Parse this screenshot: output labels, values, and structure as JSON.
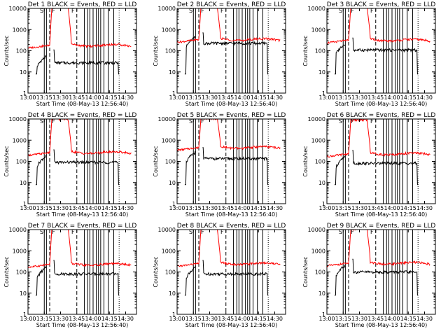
{
  "figure": {
    "background": "#ffffff",
    "colors": {
      "events": "#000000",
      "lld": "#ff0000"
    }
  },
  "chart_data": [
    {
      "type": "line",
      "title": "Det 1  BLACK = Events, RED = LLD",
      "xlabel": "Start Time (08-May-13 12:56:40)",
      "ylabel": "Counts/sec",
      "yscale": "log",
      "ylim": [
        1,
        10000
      ],
      "xlim": [
        "13:00",
        "14:40"
      ],
      "x_ticks": [
        "13:00",
        "13:15",
        "13:30",
        "13:45",
        "14:00",
        "14:15",
        "14:30"
      ],
      "y_ticks": [
        "1",
        "10",
        "100",
        "1000",
        "10000"
      ],
      "annotations": [
        "S",
        "F",
        "F"
      ],
      "series": [
        {
          "name": "BLACK = Events",
          "color": "#000000",
          "baseline": 30,
          "peak": 110,
          "gap_from": "13:17",
          "gap_to": "13:23",
          "end": "14:24"
        },
        {
          "name": "RED = LLD",
          "color": "#ff0000",
          "baseline": 160,
          "peak": 12000,
          "peak_from": "13:22",
          "peak_to": "13:37",
          "end": "14:35"
        }
      ],
      "solid_markers": [
        "13:15",
        "13:17",
        "13:52",
        "13:55",
        "13:57",
        "14:00",
        "14:03",
        "14:05",
        "14:07",
        "14:10",
        "14:14",
        "14:19"
      ],
      "dashed_markers": [
        "13:20",
        "13:45"
      ],
      "dotted_markers": [
        "14:24"
      ]
    },
    {
      "type": "line",
      "title": "Det 2  BLACK = Events, RED = LLD",
      "xlabel": "Start Time (08-May-13 12:56:40)",
      "ylabel": "Counts/sec",
      "yscale": "log",
      "ylim": [
        1,
        10000
      ],
      "xlim": [
        "13:00",
        "14:40"
      ],
      "x_ticks": [
        "13:00",
        "13:15",
        "13:30",
        "13:45",
        "14:00",
        "14:15",
        "14:30"
      ],
      "y_ticks": [
        "1",
        "10",
        "100",
        "1000",
        "10000"
      ],
      "annotations": [
        "S",
        "F",
        "F"
      ],
      "series": [
        {
          "name": "BLACK = Events",
          "color": "#000000",
          "baseline": 250,
          "peak": 700,
          "gap_from": "13:17",
          "gap_to": "13:23",
          "end": "14:24"
        },
        {
          "name": "RED = LLD",
          "color": "#ff0000",
          "baseline": 300,
          "peak": 12000,
          "peak_from": "13:22",
          "peak_to": "13:37",
          "end": "14:35"
        }
      ],
      "solid_markers": [
        "13:15",
        "13:17",
        "13:52",
        "13:55",
        "13:57",
        "14:00",
        "14:03",
        "14:05",
        "14:07",
        "14:10",
        "14:14",
        "14:19"
      ],
      "dashed_markers": [
        "13:20",
        "13:45"
      ],
      "dotted_markers": [
        "14:24"
      ]
    },
    {
      "type": "line",
      "title": "Det 3  BLACK = Events, RED = LLD",
      "xlabel": "Start Time (08-May-13 12:56:40)",
      "ylabel": "Counts/sec",
      "yscale": "log",
      "ylim": [
        1,
        10000
      ],
      "xlim": [
        "13:00",
        "14:40"
      ],
      "x_ticks": [
        "13:00",
        "13:15",
        "13:30",
        "13:45",
        "14:00",
        "14:15",
        "14:30"
      ],
      "y_ticks": [
        "1",
        "10",
        "100",
        "1000",
        "10000"
      ],
      "annotations": [
        "S",
        "F",
        "F"
      ],
      "series": [
        {
          "name": "BLACK = Events",
          "color": "#000000",
          "baseline": 120,
          "peak": 400,
          "gap_from": "13:17",
          "gap_to": "13:23",
          "end": "14:24"
        },
        {
          "name": "RED = LLD",
          "color": "#ff0000",
          "baseline": 280,
          "peak": 12000,
          "peak_from": "13:22",
          "peak_to": "13:37",
          "end": "14:35"
        }
      ],
      "solid_markers": [
        "13:15",
        "13:17",
        "13:52",
        "13:55",
        "13:57",
        "14:00",
        "14:03",
        "14:05",
        "14:07",
        "14:10",
        "14:14",
        "14:19"
      ],
      "dashed_markers": [
        "13:20",
        "13:45"
      ],
      "dotted_markers": [
        "14:24"
      ]
    },
    {
      "type": "line",
      "title": "Det 4  BLACK = Events, RED = LLD",
      "xlabel": "Start Time (08-May-13 12:56:40)",
      "ylabel": "Counts/sec",
      "yscale": "log",
      "ylim": [
        1,
        10000
      ],
      "xlim": [
        "13:00",
        "14:40"
      ],
      "x_ticks": [
        "13:00",
        "13:15",
        "13:30",
        "13:45",
        "14:00",
        "14:15",
        "14:30"
      ],
      "y_ticks": [
        "1",
        "10",
        "100",
        "1000",
        "10000"
      ],
      "annotations": [
        "S",
        "F",
        "F"
      ],
      "series": [
        {
          "name": "BLACK = Events",
          "color": "#000000",
          "baseline": 100,
          "peak": 350,
          "gap_from": "13:17",
          "gap_to": "13:23",
          "end": "14:24"
        },
        {
          "name": "RED = LLD",
          "color": "#ff0000",
          "baseline": 230,
          "peak": 10000,
          "peak_from": "13:22",
          "peak_to": "13:37",
          "end": "14:35"
        }
      ],
      "solid_markers": [
        "13:15",
        "13:17",
        "13:52",
        "13:55",
        "13:57",
        "14:00",
        "14:03",
        "14:05",
        "14:07",
        "14:10",
        "14:14",
        "14:19"
      ],
      "dashed_markers": [
        "13:20",
        "13:45"
      ],
      "dotted_markers": [
        "14:24"
      ]
    },
    {
      "type": "line",
      "title": "Det 5  BLACK = Events, RED = LLD",
      "xlabel": "Start Time (08-May-13 12:56:40)",
      "ylabel": "Counts/sec",
      "yscale": "log",
      "ylim": [
        1,
        10000
      ],
      "xlim": [
        "13:00",
        "14:40"
      ],
      "x_ticks": [
        "13:00",
        "13:15",
        "13:30",
        "13:45",
        "14:00",
        "14:15",
        "14:30"
      ],
      "y_ticks": [
        "1",
        "10",
        "100",
        "1000",
        "10000"
      ],
      "annotations": [
        "S",
        "F",
        "F"
      ],
      "series": [
        {
          "name": "BLACK = Events",
          "color": "#000000",
          "baseline": 150,
          "peak": 450,
          "gap_from": "13:17",
          "gap_to": "13:23",
          "end": "14:24"
        },
        {
          "name": "RED = LLD",
          "color": "#ff0000",
          "baseline": 400,
          "peak": 11000,
          "peak_from": "13:22",
          "peak_to": "13:37",
          "end": "14:35"
        }
      ],
      "solid_markers": [
        "13:15",
        "13:17",
        "13:52",
        "13:55",
        "13:57",
        "14:00",
        "14:03",
        "14:05",
        "14:07",
        "14:10",
        "14:14",
        "14:19"
      ],
      "dashed_markers": [
        "13:20",
        "13:45"
      ],
      "dotted_markers": [
        "14:24"
      ]
    },
    {
      "type": "line",
      "title": "Det 6  BLACK = Events, RED = LLD",
      "xlabel": "Start Time (08-May-13 12:56:40)",
      "ylabel": "Counts/sec",
      "yscale": "log",
      "ylim": [
        1,
        10000
      ],
      "xlim": [
        "13:00",
        "14:40"
      ],
      "x_ticks": [
        "13:00",
        "13:15",
        "13:30",
        "13:45",
        "14:00",
        "14:15",
        "14:30"
      ],
      "y_ticks": [
        "1",
        "10",
        "100",
        "1000",
        "10000"
      ],
      "annotations": [
        "S",
        "F",
        "F"
      ],
      "series": [
        {
          "name": "BLACK = Events",
          "color": "#000000",
          "baseline": 90,
          "peak": 330,
          "gap_from": "13:17",
          "gap_to": "13:23",
          "end": "14:24"
        },
        {
          "name": "RED = LLD",
          "color": "#ff0000",
          "baseline": 200,
          "peak": 9000,
          "peak_from": "13:22",
          "peak_to": "13:37",
          "end": "14:35"
        }
      ],
      "solid_markers": [
        "13:15",
        "13:17",
        "13:52",
        "13:55",
        "13:57",
        "14:00",
        "14:03",
        "14:05",
        "14:07",
        "14:10",
        "14:14",
        "14:19"
      ],
      "dashed_markers": [
        "13:20",
        "13:45"
      ],
      "dotted_markers": [
        "14:24"
      ]
    },
    {
      "type": "line",
      "title": "Det 7  BLACK = Events, RED = LLD",
      "xlabel": "Start Time (08-May-13 12:56:40)",
      "ylabel": "Counts/sec",
      "yscale": "log",
      "ylim": [
        1,
        10000
      ],
      "xlim": [
        "13:00",
        "14:40"
      ],
      "x_ticks": [
        "13:00",
        "13:15",
        "13:30",
        "13:45",
        "14:00",
        "14:15",
        "14:30"
      ],
      "y_ticks": [
        "1",
        "10",
        "100",
        "1000",
        "10000"
      ],
      "annotations": [
        "S",
        "F",
        "F"
      ],
      "series": [
        {
          "name": "BLACK = Events",
          "color": "#000000",
          "baseline": 90,
          "peak": 350,
          "gap_from": "13:17",
          "gap_to": "13:23",
          "end": "14:24"
        },
        {
          "name": "RED = LLD",
          "color": "#ff0000",
          "baseline": 200,
          "peak": 12000,
          "peak_from": "13:22",
          "peak_to": "13:37",
          "end": "14:35"
        }
      ],
      "solid_markers": [
        "13:15",
        "13:17",
        "13:52",
        "13:55",
        "13:57",
        "14:00",
        "14:03",
        "14:05",
        "14:07",
        "14:10",
        "14:14",
        "14:19"
      ],
      "dashed_markers": [
        "13:20",
        "13:45"
      ],
      "dotted_markers": [
        "14:24"
      ]
    },
    {
      "type": "line",
      "title": "Det 8  BLACK = Events, RED = LLD",
      "xlabel": "Start Time (08-May-13 12:56:40)",
      "ylabel": "Counts/sec",
      "yscale": "log",
      "ylim": [
        1,
        10000
      ],
      "xlim": [
        "13:00",
        "14:40"
      ],
      "x_ticks": [
        "13:00",
        "13:15",
        "13:30",
        "13:45",
        "14:00",
        "14:15",
        "14:30"
      ],
      "y_ticks": [
        "1",
        "10",
        "100",
        "1000",
        "10000"
      ],
      "annotations": [
        "S",
        "F",
        "F"
      ],
      "series": [
        {
          "name": "BLACK = Events",
          "color": "#000000",
          "baseline": 90,
          "peak": 350,
          "gap_from": "13:17",
          "gap_to": "13:23",
          "end": "14:24"
        },
        {
          "name": "RED = LLD",
          "color": "#ff0000",
          "baseline": 220,
          "peak": 12000,
          "peak_from": "13:22",
          "peak_to": "13:37",
          "end": "14:35"
        }
      ],
      "solid_markers": [
        "13:15",
        "13:17",
        "13:52",
        "13:55",
        "13:57",
        "14:00",
        "14:03",
        "14:05",
        "14:07",
        "14:10",
        "14:14",
        "14:19"
      ],
      "dashed_markers": [
        "13:20",
        "13:45"
      ],
      "dotted_markers": [
        "14:24"
      ]
    },
    {
      "type": "line",
      "title": "Det 9  BLACK = Events, RED = LLD",
      "xlabel": "Start Time (08-May-13 12:56:40)",
      "ylabel": "Counts/sec",
      "yscale": "log",
      "ylim": [
        1,
        10000
      ],
      "xlim": [
        "13:00",
        "14:40"
      ],
      "x_ticks": [
        "13:00",
        "13:15",
        "13:30",
        "13:45",
        "14:00",
        "14:15",
        "14:30"
      ],
      "y_ticks": [
        "1",
        "10",
        "100",
        "1000",
        "10000"
      ],
      "annotations": [
        "S",
        "F",
        "F"
      ],
      "series": [
        {
          "name": "BLACK = Events",
          "color": "#000000",
          "baseline": 110,
          "peak": 400,
          "gap_from": "13:17",
          "gap_to": "13:23",
          "end": "14:24"
        },
        {
          "name": "RED = LLD",
          "color": "#ff0000",
          "baseline": 230,
          "peak": 11000,
          "peak_from": "13:22",
          "peak_to": "13:37",
          "end": "14:35"
        }
      ],
      "solid_markers": [
        "13:15",
        "13:17",
        "13:52",
        "13:55",
        "13:57",
        "14:00",
        "14:03",
        "14:05",
        "14:07",
        "14:10",
        "14:14",
        "14:19"
      ],
      "dashed_markers": [
        "13:20",
        "13:45"
      ],
      "dotted_markers": [
        "14:24"
      ]
    }
  ]
}
